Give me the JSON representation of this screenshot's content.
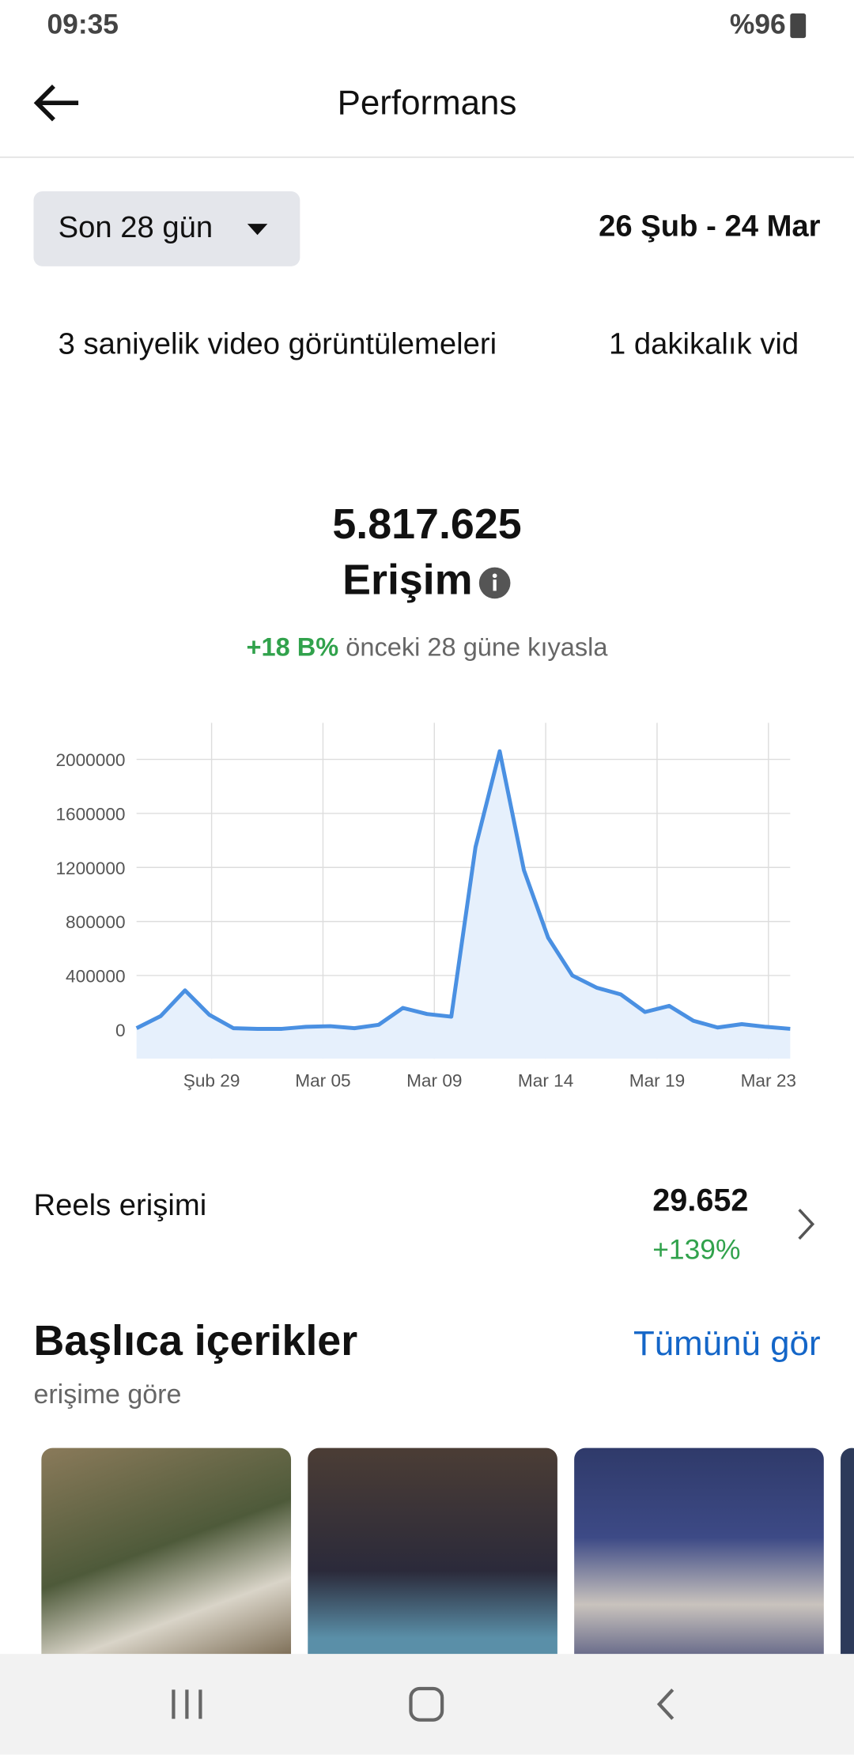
{
  "status": {
    "time": "09:35",
    "battery": "%96"
  },
  "header": {
    "title": "Performans"
  },
  "filter": {
    "range": "Son 28 gün",
    "dates": "26 Şub - 24 Mar"
  },
  "tabs": [
    "3 saniyelik video görüntülemeleri",
    "1 dakikalık vid"
  ],
  "summary": {
    "value": "5.817.625",
    "label": "Erişim",
    "change": "+18 B%",
    "comparison": "önceki 28 güne kıyasla"
  },
  "chart_data": {
    "type": "line",
    "x": [
      0,
      1,
      2,
      3,
      4,
      5,
      6,
      7,
      8,
      9,
      10,
      11,
      12,
      13,
      14,
      15,
      16,
      17,
      18,
      19,
      20,
      21,
      22,
      23,
      24,
      25,
      26,
      27
    ],
    "series": [
      {
        "color": "#4a90e2",
        "values": [
          10000,
          100000,
          290000,
          110000,
          10000,
          5000,
          5000,
          20000,
          25000,
          10000,
          35000,
          160000,
          115000,
          95000,
          1350000,
          2060000,
          1180000,
          680000,
          400000,
          310000,
          260000,
          130000,
          175000,
          65000,
          15000,
          40000,
          20000,
          5000
        ]
      }
    ],
    "xlim": [
      0,
      27
    ],
    "xticks": [
      {
        "value": 3.1,
        "label": "Şub 29"
      },
      {
        "value": 7.7,
        "label": "Mar 05"
      },
      {
        "value": 12.3,
        "label": "Mar 09"
      },
      {
        "value": 16.9,
        "label": "Mar 14"
      },
      {
        "value": 21.5,
        "label": "Mar 19"
      },
      {
        "value": 26.1,
        "label": "Mar 23"
      }
    ],
    "ylim": [
      -215000,
      2270000
    ],
    "yticks": [
      0,
      400000,
      800000,
      1200000,
      1600000,
      2000000
    ],
    "grid": true
  },
  "reels": {
    "label": "Reels erişimi",
    "value": "29.652",
    "change": "+139%"
  },
  "top": {
    "title": "Başlıca içerikler",
    "link": "Tümünü gör",
    "subtitle": "erişime göre"
  }
}
